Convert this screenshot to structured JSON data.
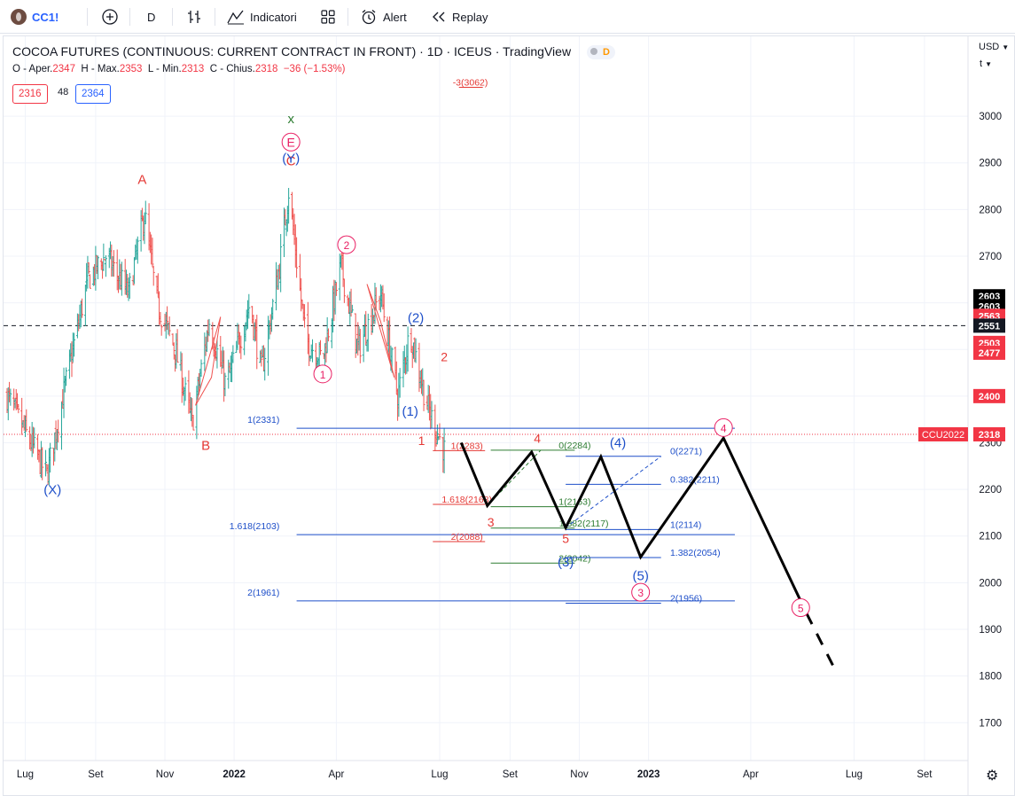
{
  "toolbar": {
    "symbol": "CC1!",
    "interval": "D",
    "indicators_label": "Indicatori",
    "alert_label": "Alert",
    "replay_label": "Replay"
  },
  "header": {
    "title": "COCOA FUTURES (CONTINUOUS: CURRENT CONTRACT IN FRONT) · 1D · ICEUS · TradingView",
    "badge": "D",
    "ohlc": {
      "o_label": "O - Aper.",
      "o": "2347",
      "h_label": "H - Max.",
      "h": "2353",
      "l_label": "L - Min.",
      "l": "2313",
      "c_label": "C - Chius.",
      "c": "2318",
      "change": "−36 (−1.53%)"
    },
    "bid": "2316",
    "spread": "48",
    "ask": "2364"
  },
  "axis": {
    "unit": "USD",
    "unit_sub": "t"
  },
  "colors": {
    "up_bar": "#26a69a",
    "down_bar": "#ef5350",
    "red_label": "#e53935",
    "blue_label": "#1e4fc9",
    "green_label": "#2e7d32",
    "pink_label": "#e91e63",
    "projection": "#000000"
  },
  "chart_data": {
    "type": "ohlc",
    "y_unit": "USD/t",
    "ylim": [
      1620,
      3180
    ],
    "y_ticks": [
      1700,
      1800,
      1900,
      2000,
      2100,
      2200,
      2300,
      2400,
      2500,
      2600,
      2700,
      2800,
      2900,
      3000
    ],
    "x_ticks": [
      "Lug",
      "Set",
      "Nov",
      "2022",
      "Apr",
      "Lug",
      "Set",
      "Nov",
      "2023",
      "Apr",
      "Lug",
      "Set"
    ],
    "x_tick_dates": [
      "2021-07-01",
      "2021-09-01",
      "2021-11-01",
      "2022-01-01",
      "2022-04-01",
      "2022-07-01",
      "2022-09-01",
      "2022-11-01",
      "2023-01-01",
      "2023-04-01",
      "2023-07-01",
      "2023-09-01"
    ],
    "price_path": [
      [
        "2021-06-15",
        2400
      ],
      [
        "2021-07-10",
        2280
      ],
      [
        "2021-07-20",
        2230
      ],
      [
        "2021-08-05",
        2420
      ],
      [
        "2021-08-25",
        2650
      ],
      [
        "2021-09-10",
        2700
      ],
      [
        "2021-09-30",
        2620
      ],
      [
        "2021-10-14",
        2790
      ],
      [
        "2021-10-25",
        2600
      ],
      [
        "2021-11-10",
        2500
      ],
      [
        "2021-11-25",
        2340
      ],
      [
        "2021-12-10",
        2560
      ],
      [
        "2021-12-25",
        2420
      ],
      [
        "2022-01-15",
        2600
      ],
      [
        "2022-01-25",
        2450
      ],
      [
        "2022-02-10",
        2680
      ],
      [
        "2022-02-18",
        2840
      ],
      [
        "2022-03-05",
        2520
      ],
      [
        "2022-03-20",
        2480
      ],
      [
        "2022-04-05",
        2680
      ],
      [
        "2022-04-20",
        2500
      ],
      [
        "2022-05-10",
        2620
      ],
      [
        "2022-05-25",
        2400
      ],
      [
        "2022-06-05",
        2540
      ],
      [
        "2022-06-20",
        2380
      ],
      [
        "2022-07-05",
        2283
      ]
    ],
    "last_price": 2318,
    "dashed_level": 2551,
    "price_tags": [
      {
        "label": "2603",
        "price": 2614,
        "bg": "#000000"
      },
      {
        "label": "2603",
        "price": 2593,
        "bg": "#000000"
      },
      {
        "label": "2563",
        "price": 2572,
        "bg": "#f23645"
      },
      {
        "label": "2551",
        "price": 2551,
        "bg": "#131722"
      },
      {
        "label": "2503",
        "price": 2514,
        "bg": "#f23645"
      },
      {
        "label": "2477",
        "price": 2493,
        "bg": "#f23645"
      },
      {
        "label": "2400",
        "price": 2400,
        "bg": "#f23645"
      },
      {
        "label": "2318",
        "price": 2318,
        "bg": "#f23645"
      }
    ],
    "contract_tag": "CCU2022",
    "fib_levels": [
      {
        "label": "-3(3062)",
        "price": 3062,
        "color": "#e53935"
      },
      {
        "label": "1(2331)",
        "price": 2331,
        "color": "#1e4fc9"
      },
      {
        "label": "1.618(2103)",
        "price": 2103,
        "color": "#1e4fc9"
      },
      {
        "label": "2(1961)",
        "price": 1961,
        "color": "#1e4fc9"
      },
      {
        "label": "1(2283)",
        "price": 2283,
        "color": "#e53935"
      },
      {
        "label": "1.618(2168)",
        "price": 2168,
        "color": "#e53935"
      },
      {
        "label": "2(2088)",
        "price": 2088,
        "color": "#e53935"
      },
      {
        "label": "0(2284)",
        "price": 2284,
        "color": "#2e7d32"
      },
      {
        "label": "1(2163)",
        "price": 2163,
        "color": "#2e7d32"
      },
      {
        "label": "1.382(2117)",
        "price": 2117,
        "color": "#2e7d32"
      },
      {
        "label": "2(2042)",
        "price": 2042,
        "color": "#2e7d32"
      },
      {
        "label": "0(2271)",
        "price": 2271,
        "color": "#1e4fc9"
      },
      {
        "label": "0.382(2211)",
        "price": 2211,
        "color": "#1e4fc9"
      },
      {
        "label": "1(2114)",
        "price": 2114,
        "color": "#1e4fc9"
      },
      {
        "label": "1.382(2054)",
        "price": 2054,
        "color": "#1e4fc9"
      },
      {
        "label": "2(1956)",
        "price": 1956,
        "color": "#1e4fc9"
      }
    ],
    "wave_labels": [
      {
        "text": "(X)",
        "color": "#1e4fc9"
      },
      {
        "text": "A",
        "color": "#e53935"
      },
      {
        "text": "B",
        "color": "#e53935"
      },
      {
        "text": "C",
        "color": "#e53935"
      },
      {
        "text": "x",
        "color": "#2e7d32"
      },
      {
        "text": "E",
        "color": "#e91e63",
        "circled": true
      },
      {
        "text": "(Y)",
        "color": "#1e4fc9"
      },
      {
        "text": "1",
        "color": "#e91e63",
        "circled": true
      },
      {
        "text": "2",
        "color": "#e91e63",
        "circled": true
      },
      {
        "text": "(1)",
        "color": "#1e4fc9"
      },
      {
        "text": "(2)",
        "color": "#1e4fc9"
      },
      {
        "text": "1",
        "color": "#e53935"
      },
      {
        "text": "2",
        "color": "#e53935"
      },
      {
        "text": "3",
        "color": "#e53935"
      },
      {
        "text": "4",
        "color": "#e53935"
      },
      {
        "text": "5",
        "color": "#e53935"
      },
      {
        "text": "(3)",
        "color": "#1e4fc9"
      },
      {
        "text": "(4)",
        "color": "#1e4fc9"
      },
      {
        "text": "(5)",
        "color": "#1e4fc9"
      },
      {
        "text": "3",
        "color": "#e91e63",
        "circled": true
      },
      {
        "text": "4",
        "color": "#e91e63",
        "circled": true
      },
      {
        "text": "5",
        "color": "#e91e63",
        "circled": true
      }
    ],
    "projection_path": [
      [
        "2022-07-20",
        2300
      ],
      [
        "2022-08-12",
        2165
      ],
      [
        "2022-09-20",
        2280
      ],
      [
        "2022-10-20",
        2118
      ],
      [
        "2022-11-20",
        2270
      ],
      [
        "2022-12-25",
        2055
      ],
      [
        "2023-03-08",
        2310
      ],
      [
        "2023-05-20",
        1935
      ]
    ],
    "projection_dashed": [
      [
        "2023-05-20",
        1935
      ],
      [
        "2023-06-15",
        1810
      ]
    ]
  }
}
